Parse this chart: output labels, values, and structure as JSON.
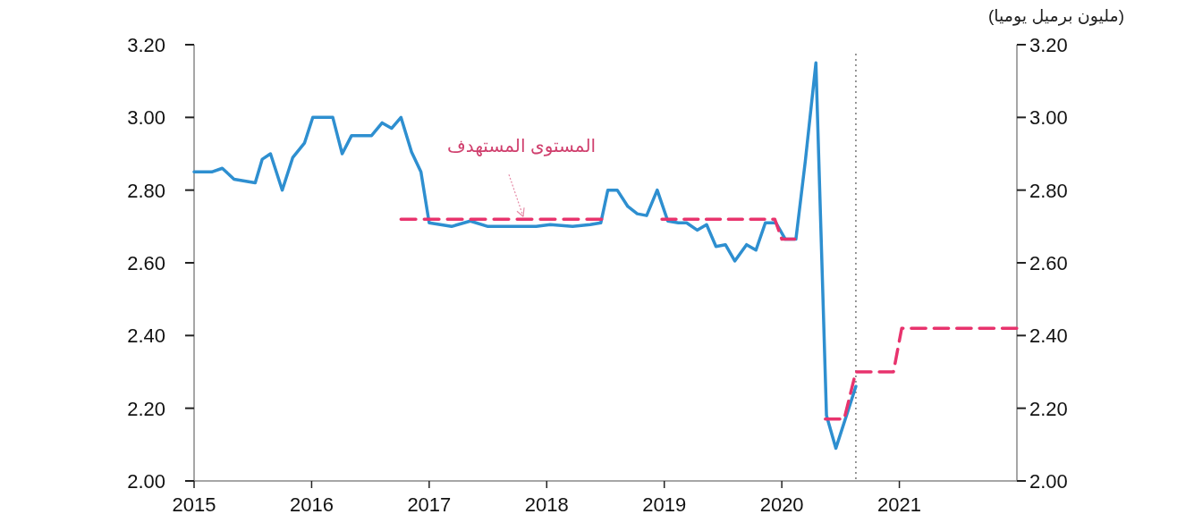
{
  "chart_data": {
    "type": "line",
    "y2label": "(مليون برميل يوميا)",
    "xlim": [
      2015,
      2022
    ],
    "xticks": [
      2015,
      2016,
      2017,
      2018,
      2019,
      2020,
      2021
    ],
    "ylim": [
      2.0,
      3.2
    ],
    "yticks": [
      {
        "value": 2.0,
        "label": "2.00"
      },
      {
        "value": 2.2,
        "label": "2.20"
      },
      {
        "value": 2.4,
        "label": "2.40"
      },
      {
        "value": 2.6,
        "label": "2.60"
      },
      {
        "value": 2.8,
        "label": "2.80"
      },
      {
        "value": 3.0,
        "label": "3.00"
      },
      {
        "value": 3.2,
        "label": "3.20"
      }
    ],
    "y2lim": [
      2.0,
      3.2
    ],
    "y2ticks": [
      {
        "value": 2.0,
        "label": "2.00"
      },
      {
        "value": 2.2,
        "label": "2.20"
      },
      {
        "value": 2.4,
        "label": "2.40"
      },
      {
        "value": 2.6,
        "label": "2.60"
      },
      {
        "value": 2.8,
        "label": "2.80"
      },
      {
        "value": 3.0,
        "label": "3.00"
      },
      {
        "value": 3.2,
        "label": "3.20"
      }
    ],
    "series": [
      {
        "color": "#e8336d",
        "line_style": "dashed",
        "x": [
          2016.76,
          2018.47
        ],
        "values": [
          2.72,
          2.72
        ]
      },
      {
        "color": "#e8336d",
        "line_style": "dashed",
        "x": [
          2018.98,
          2019.94,
          2020.0,
          2020.11
        ],
        "values": [
          2.72,
          2.72,
          2.665,
          2.665
        ]
      },
      {
        "color": "#e8336d",
        "line_style": "dashed",
        "x": [
          2020.37,
          2020.53,
          2020.63,
          2020.95,
          2021.02,
          2022.0
        ],
        "values": [
          2.17,
          2.17,
          2.3,
          2.3,
          2.42,
          2.42
        ]
      },
      {
        "color": "#2e8fd0",
        "line_style": "solid",
        "x": [
          2015.0,
          2015.15,
          2015.24,
          2015.34,
          2015.52,
          2015.58,
          2015.65,
          2015.75,
          2015.84,
          2015.94,
          2016.01,
          2016.18,
          2016.26,
          2016.34,
          2016.51,
          2016.6,
          2016.68,
          2016.76,
          2016.85,
          2016.93,
          2017.0,
          2017.19,
          2017.35,
          2017.5,
          2017.91,
          2018.03,
          2018.22,
          2018.37,
          2018.46,
          2018.52,
          2018.6,
          2018.69,
          2018.77,
          2018.85,
          2018.94,
          2019.03,
          2019.12,
          2019.19,
          2019.28,
          2019.36,
          2019.44,
          2019.52,
          2019.6,
          2019.7,
          2019.78,
          2019.86,
          2019.95,
          2020.03,
          2020.12,
          2020.2,
          2020.29,
          2020.38,
          2020.46,
          2020.63
        ],
        "values": [
          2.85,
          2.85,
          2.86,
          2.83,
          2.82,
          2.885,
          2.9,
          2.8,
          2.89,
          2.93,
          3.0,
          3.0,
          2.9,
          2.95,
          2.95,
          2.985,
          2.97,
          3.0,
          2.905,
          2.85,
          2.71,
          2.7,
          2.715,
          2.7,
          2.7,
          2.705,
          2.7,
          2.705,
          2.71,
          2.8,
          2.8,
          2.755,
          2.735,
          2.73,
          2.8,
          2.715,
          2.71,
          2.71,
          2.69,
          2.705,
          2.645,
          2.65,
          2.605,
          2.65,
          2.635,
          2.71,
          2.71,
          2.665,
          2.665,
          2.88,
          3.15,
          2.18,
          2.09,
          2.26
        ]
      }
    ],
    "ref_lines": [
      {
        "axis": "x",
        "value": 2020.63,
        "color": "#777777",
        "line_style": "dotted"
      }
    ],
    "annotations": [
      {
        "text": "المستوى المستهدف",
        "x": 2017.8,
        "y": 2.72
      }
    ]
  }
}
